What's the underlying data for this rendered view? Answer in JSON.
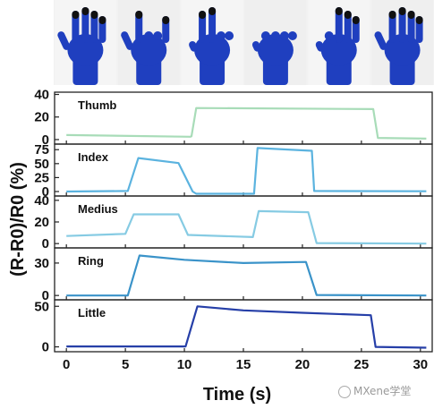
{
  "photo_strip": {
    "gestures": [
      "open-hand",
      "horns",
      "victory",
      "fist",
      "ok-sign",
      "open-hand"
    ],
    "glove_color": "#1f3fbf"
  },
  "chart_data": {
    "type": "line",
    "xlabel": "Time (s)",
    "ylabel": "(R-R0)/R0 (%)",
    "xlim": [
      -1,
      31
    ],
    "x_ticks": [
      0,
      5,
      10,
      15,
      20,
      25,
      30
    ],
    "grid": false,
    "panels": [
      {
        "name": "Thumb",
        "color": "#a8dcb8",
        "ylim": [
          -4,
          42
        ],
        "y_ticks": [
          0,
          20,
          40
        ],
        "x": [
          0,
          10.5,
          10.6,
          11,
          26,
          26.4,
          30.5
        ],
        "y": [
          4,
          2.5,
          3,
          28,
          27,
          1.5,
          0.8
        ]
      },
      {
        "name": "Index",
        "color": "#5bb3df",
        "ylim": [
          -8,
          85
        ],
        "y_ticks": [
          0,
          25,
          50,
          75
        ],
        "x": [
          0,
          5.2,
          6.1,
          9.5,
          10.7,
          11,
          15.9,
          16.2,
          20.8,
          21.0,
          30.5
        ],
        "y": [
          0,
          1,
          60,
          51,
          0,
          -4,
          -4,
          78,
          73,
          1,
          0.5
        ]
      },
      {
        "name": "Medius",
        "color": "#86cbe3",
        "ylim": [
          -4,
          44
        ],
        "y_ticks": [
          0,
          20,
          40
        ],
        "x": [
          0,
          5,
          5.7,
          9.5,
          10.3,
          15.8,
          16.3,
          20.5,
          21.2,
          30.5
        ],
        "y": [
          7,
          9,
          27,
          27,
          8,
          6,
          30,
          29,
          0.5,
          0
        ]
      },
      {
        "name": "Ring",
        "color": "#3a93c9",
        "ylim": [
          -4,
          44
        ],
        "y_ticks": [
          0,
          30
        ],
        "x": [
          0,
          5.2,
          6.2,
          10,
          15,
          20.3,
          21.2,
          30.5
        ],
        "y": [
          0,
          0,
          37,
          33,
          30,
          31,
          0.5,
          0
        ]
      },
      {
        "name": "Little",
        "color": "#263fa8",
        "ylim": [
          -6,
          58
        ],
        "y_ticks": [
          0,
          50
        ],
        "x": [
          0,
          10.1,
          11.1,
          15,
          20,
          25.8,
          26.2,
          30.5
        ],
        "y": [
          0.5,
          0.5,
          50,
          45,
          42,
          39,
          0,
          -1
        ]
      }
    ]
  },
  "watermark": "MXene学堂"
}
